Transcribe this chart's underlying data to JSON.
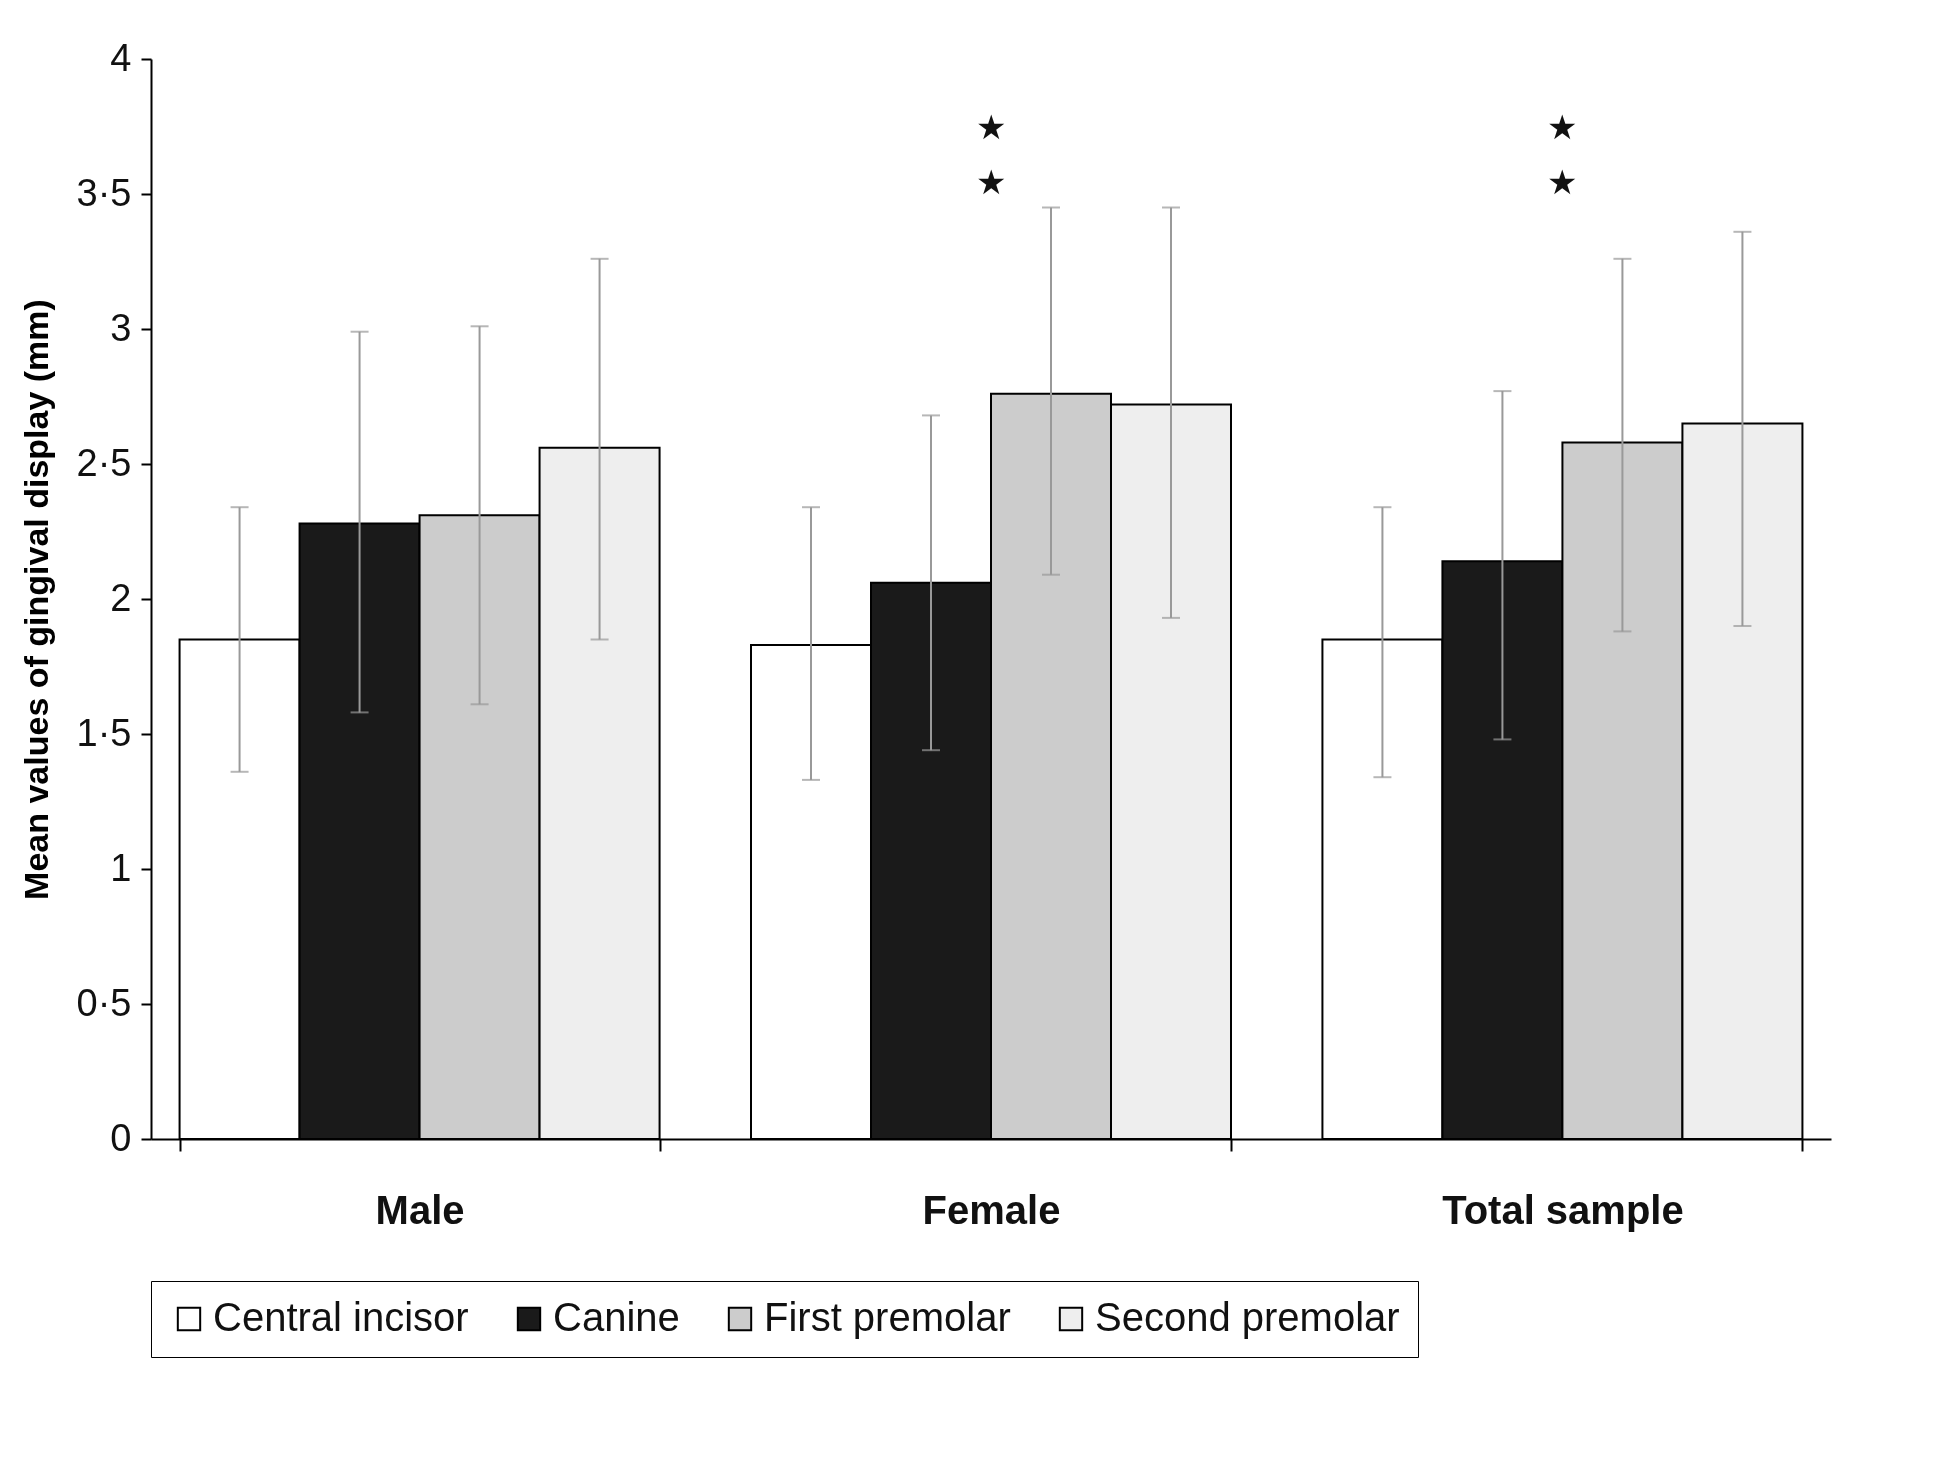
{
  "chart_data": {
    "type": "bar",
    "ylabel": "Mean values of gingival display (mm)",
    "categories": [
      "Male",
      "Female",
      "Total sample"
    ],
    "series": [
      {
        "name": "Central incisor",
        "color": "#ffffff",
        "values": [
          1.85,
          1.83,
          1.85
        ],
        "errors": [
          [
            1.36,
            2.34
          ],
          [
            1.33,
            2.34
          ],
          [
            1.34,
            2.34
          ]
        ]
      },
      {
        "name": "Canine",
        "color": "#1a1a1a",
        "values": [
          2.28,
          2.06,
          2.14
        ],
        "errors": [
          [
            1.58,
            2.99
          ],
          [
            1.44,
            2.68
          ],
          [
            1.48,
            2.77
          ]
        ]
      },
      {
        "name": "First premolar",
        "color": "#cccccc",
        "values": [
          2.31,
          2.76,
          2.58
        ],
        "errors": [
          [
            1.61,
            3.01
          ],
          [
            2.09,
            3.45
          ],
          [
            1.88,
            3.26
          ]
        ]
      },
      {
        "name": "Second premolar",
        "color": "#eeeeee",
        "values": [
          2.56,
          2.72,
          2.65
        ],
        "errors": [
          [
            1.85,
            3.26
          ],
          [
            1.93,
            3.45
          ],
          [
            1.9,
            3.36
          ]
        ]
      }
    ],
    "ylim": [
      0,
      4
    ],
    "yticks": [
      0,
      {
        "value": 0.5,
        "label": "0·5"
      },
      1,
      {
        "value": 1.5,
        "label": "1·5"
      },
      2,
      {
        "value": 2.5,
        "label": "2·5"
      },
      3,
      {
        "value": 3.5,
        "label": "3·5"
      },
      4
    ],
    "annotations": [
      "★",
      "★",
      "★",
      "★"
    ],
    "grid": false,
    "legend": "bottom"
  }
}
